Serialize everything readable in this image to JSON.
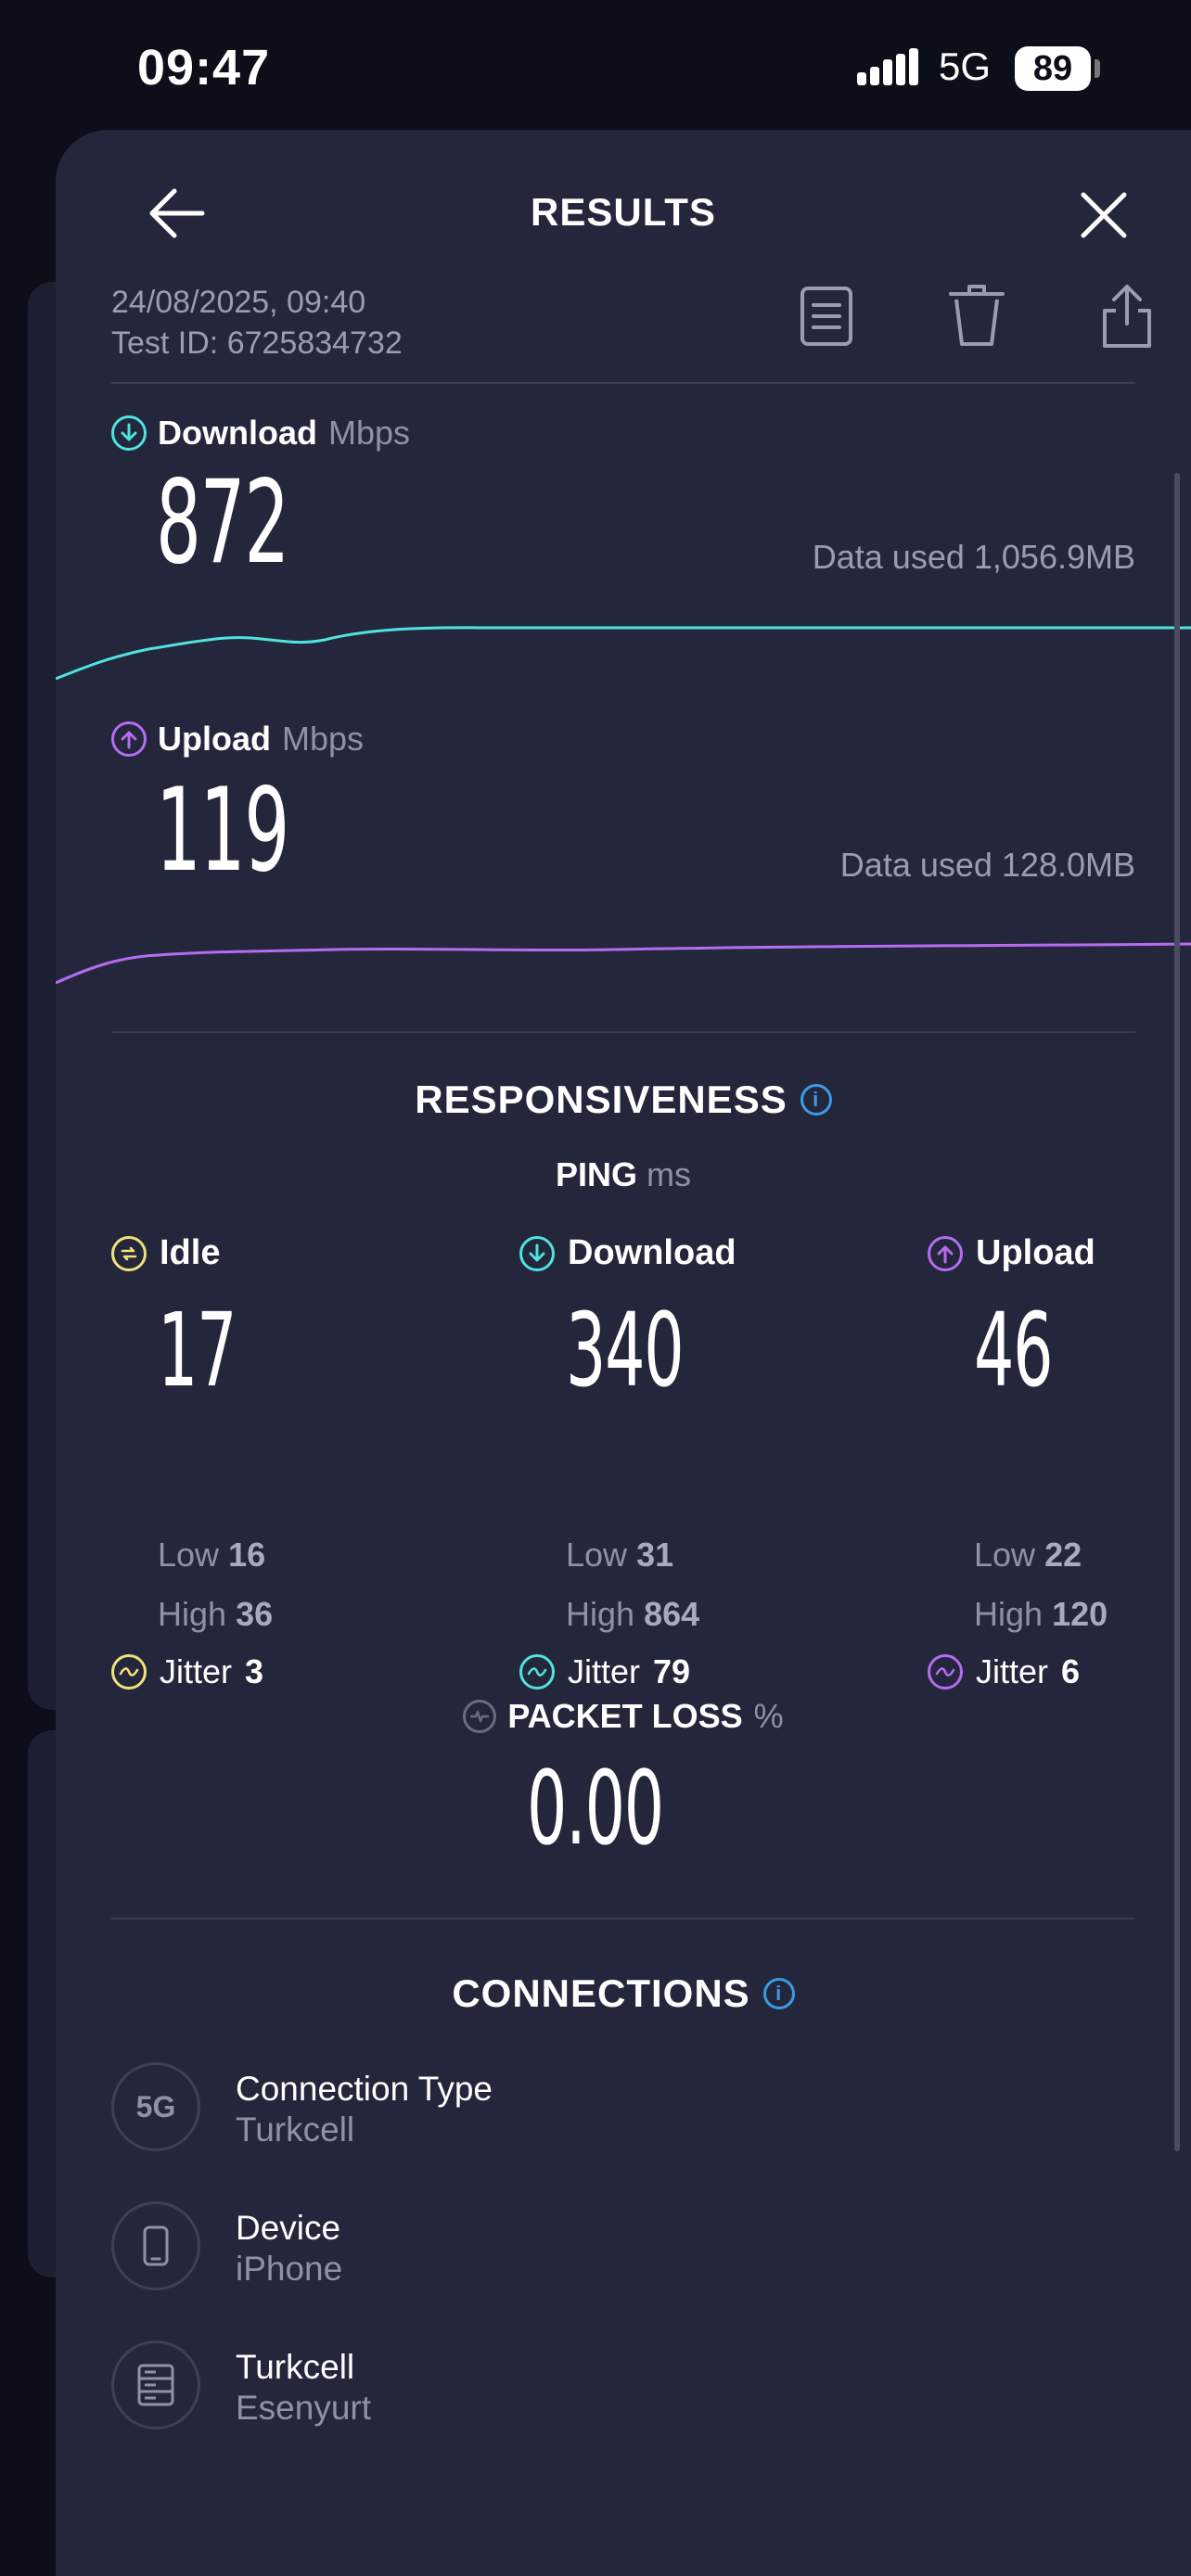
{
  "status_bar": {
    "time": "09:47",
    "network": "5G",
    "battery": "89"
  },
  "header": {
    "title": "RESULTS",
    "back_icon": "arrow-left-icon",
    "close_icon": "close-icon"
  },
  "test_meta": {
    "datetime": "24/08/2025, 09:40",
    "test_id": "Test ID: 6725834732",
    "actions": [
      "document-icon",
      "trash-icon",
      "share-icon"
    ]
  },
  "download": {
    "label": "Download",
    "unit": "Mbps",
    "value": "872",
    "data_used": "Data used 1,056.9MB",
    "color": "#4fe3e0"
  },
  "upload": {
    "label": "Upload",
    "unit": "Mbps",
    "value": "119",
    "data_used": "Data used 128.0MB",
    "color": "#b56cf2"
  },
  "responsiveness": {
    "title": "RESPONSIVENESS",
    "ping_label": "PING",
    "ping_unit": "ms",
    "columns": [
      {
        "label": "Idle",
        "value": "17",
        "low_label": "Low",
        "low": "16",
        "high_label": "High",
        "high": "36",
        "jitter_label": "Jitter",
        "jitter": "3",
        "color": "#f1e27a"
      },
      {
        "label": "Download",
        "value": "340",
        "low_label": "Low",
        "low": "31",
        "high_label": "High",
        "high": "864",
        "jitter_label": "Jitter",
        "jitter": "79",
        "color": "#4fe3e0"
      },
      {
        "label": "Upload",
        "value": "46",
        "low_label": "Low",
        "low": "22",
        "high_label": "High",
        "high": "120",
        "jitter_label": "Jitter",
        "jitter": "6",
        "color": "#b56cf2"
      }
    ]
  },
  "packet_loss": {
    "label": "PACKET LOSS",
    "unit": "%",
    "value": "0.00"
  },
  "connections": {
    "title": "CONNECTIONS",
    "items": [
      {
        "icon": "5g-icon",
        "icon_text": "5G",
        "title": "Connection Type",
        "subtitle": "Turkcell"
      },
      {
        "icon": "phone-icon",
        "title": "Device",
        "subtitle": "iPhone"
      },
      {
        "icon": "server-icon",
        "title": "Turkcell",
        "subtitle": "Esenyurt"
      }
    ]
  }
}
